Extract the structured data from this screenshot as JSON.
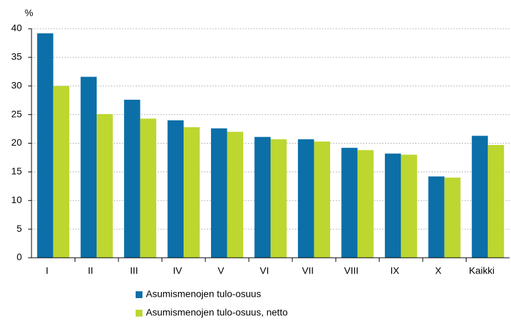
{
  "chart_data": {
    "type": "bar",
    "y_label": "%",
    "categories": [
      "I",
      "II",
      "III",
      "IV",
      "V",
      "VI",
      "VII",
      "VIII",
      "IX",
      "X",
      "Kaikki"
    ],
    "series": [
      {
        "name": "Asumismenojen tulo-osuus",
        "color": "#0c6fa8",
        "values": [
          39.2,
          31.6,
          27.6,
          24.0,
          22.6,
          21.1,
          20.7,
          19.2,
          18.2,
          14.2,
          21.3
        ]
      },
      {
        "name": "Asumismenojen tulo-osuus, netto",
        "color": "#bdd630",
        "values": [
          30.0,
          25.1,
          24.3,
          22.8,
          22.0,
          20.7,
          20.3,
          18.8,
          18.0,
          14.0,
          19.7
        ]
      }
    ],
    "ylim": [
      0,
      40
    ],
    "yticks": [
      0,
      5,
      10,
      15,
      20,
      25,
      30,
      35,
      40
    ],
    "grid": true,
    "legend": "bottom"
  }
}
